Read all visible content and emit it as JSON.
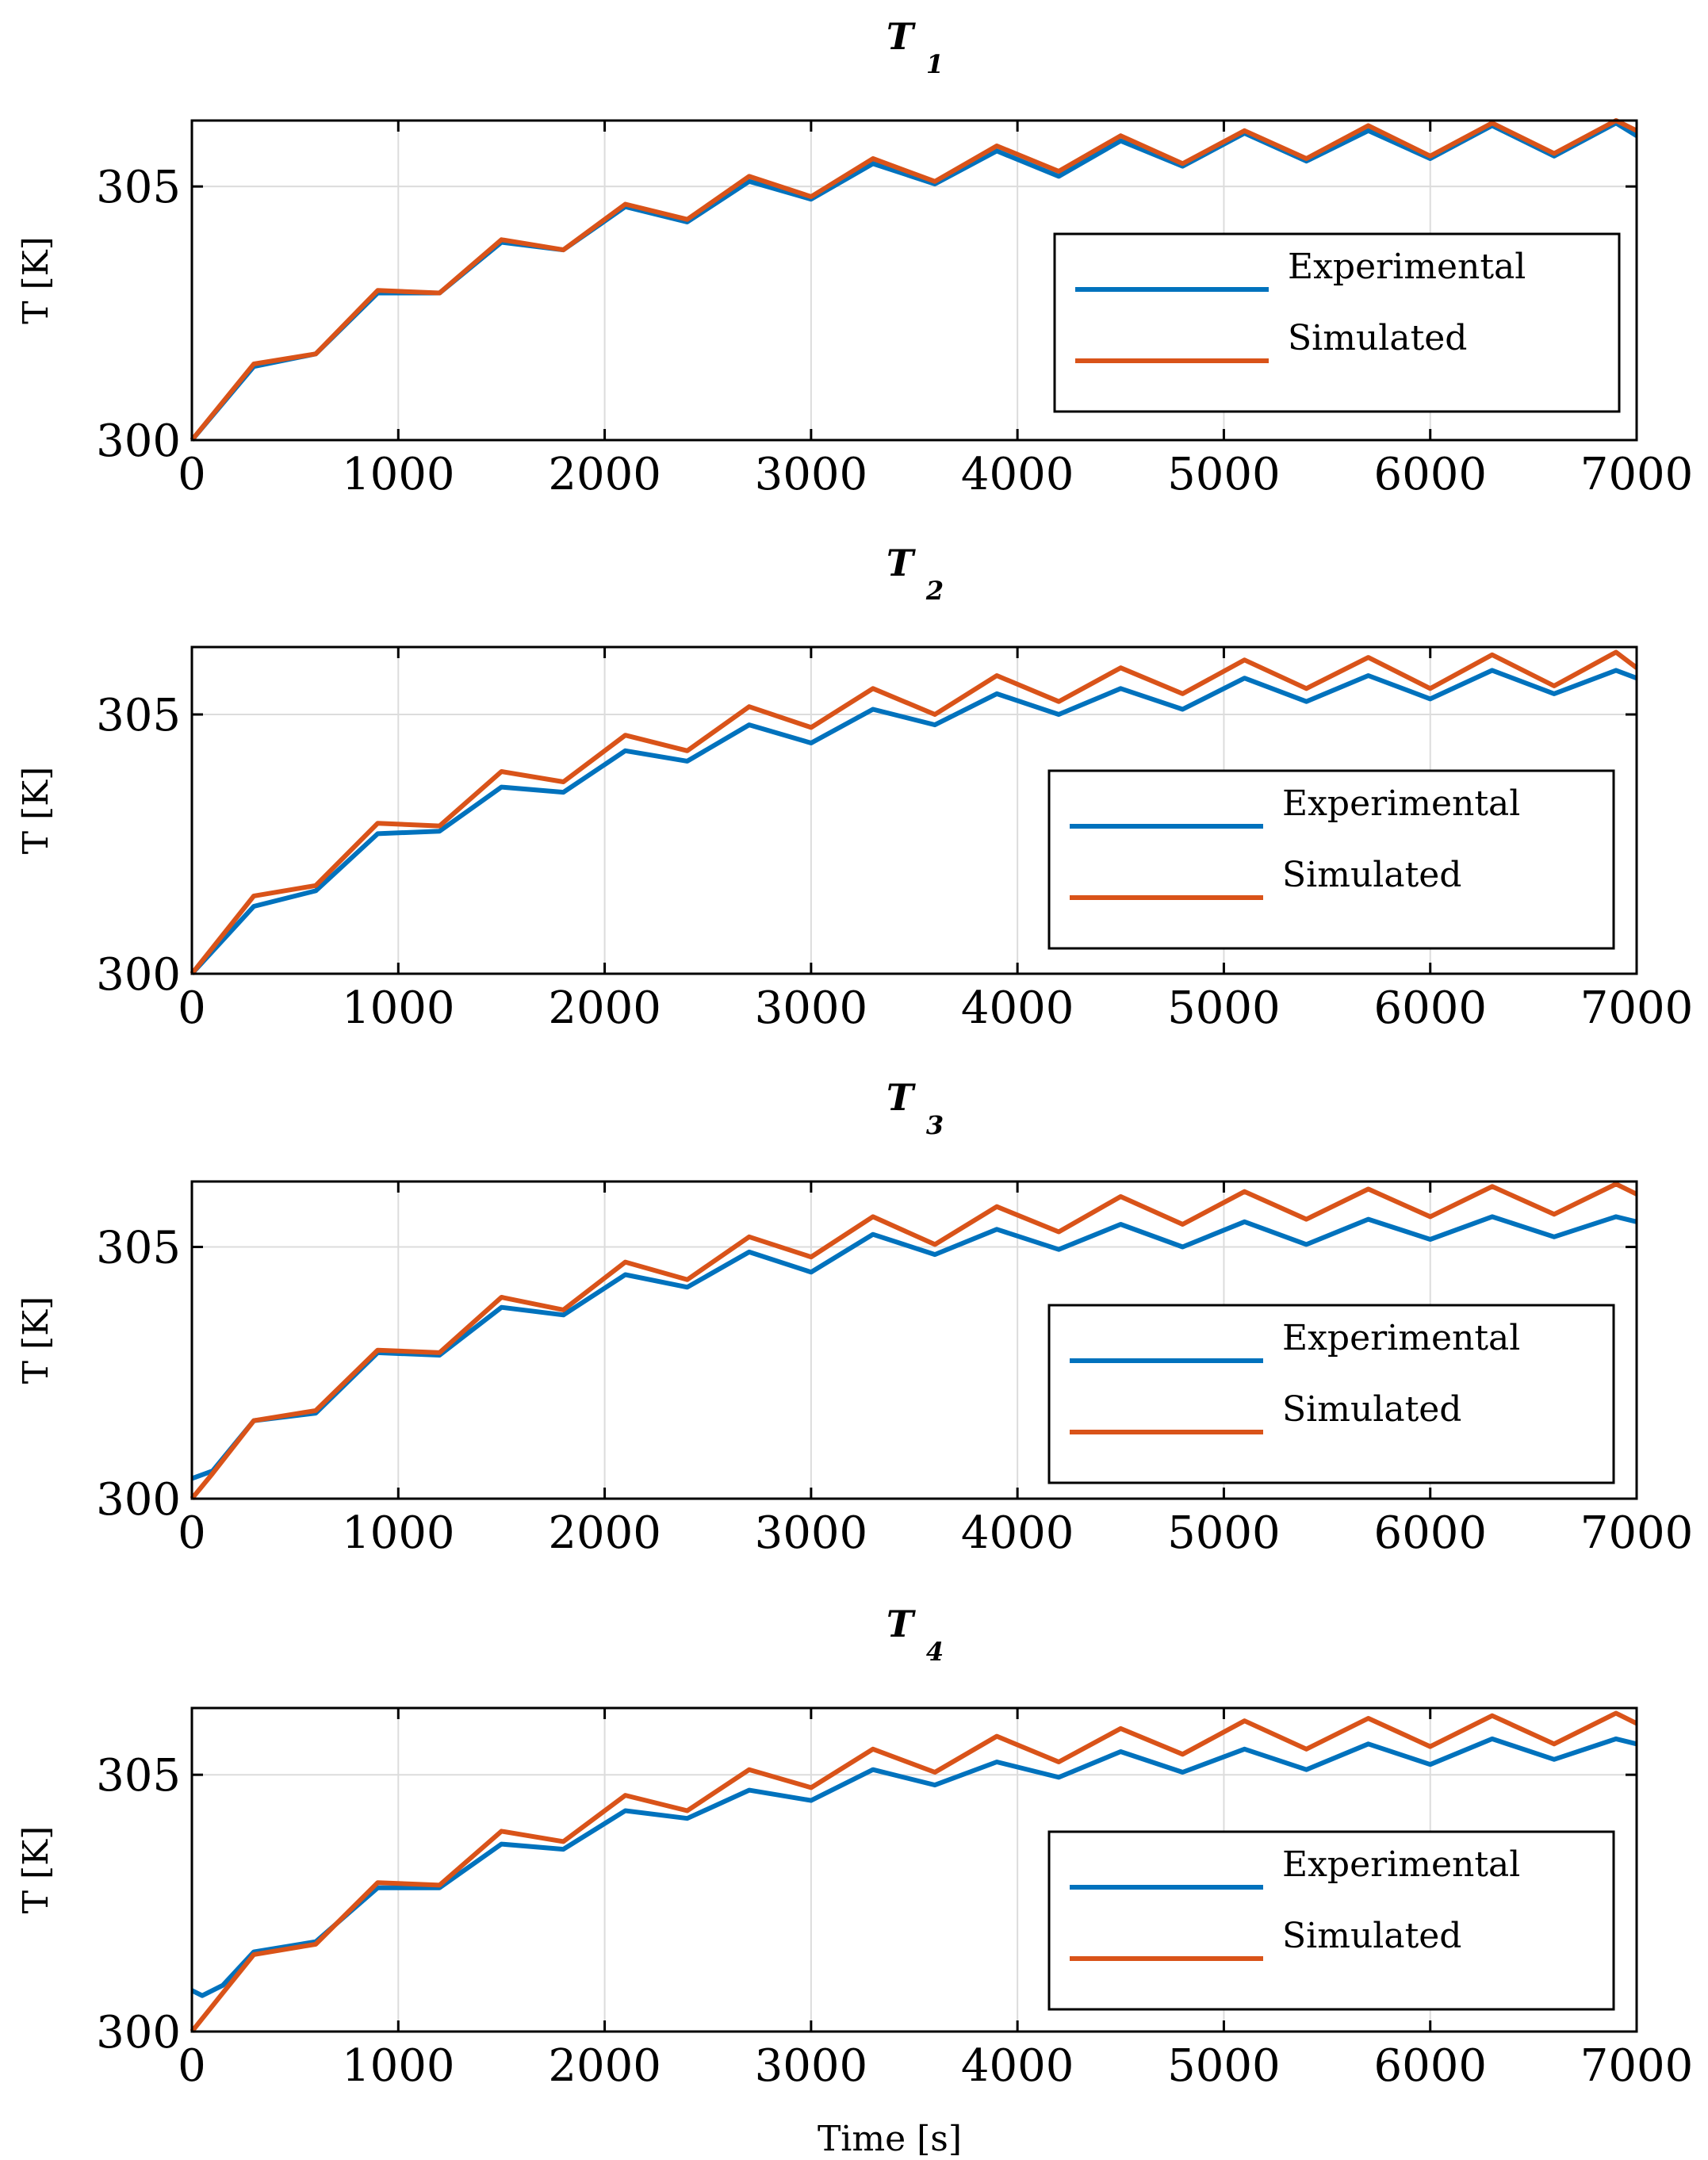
{
  "figure": {
    "x_axis_label": "Time [s]"
  },
  "colors": {
    "experimental": "#0072BD",
    "simulated": "#D95319",
    "grid": "#dcdcdc",
    "axis": "#000000"
  },
  "chart_data": [
    {
      "type": "line",
      "title": "T",
      "title_subscript": "1",
      "xlabel": "",
      "ylabel": "T [K]",
      "xlim": [
        0,
        7000
      ],
      "ylim": [
        300,
        306.3
      ],
      "x_ticks": [
        0,
        1000,
        2000,
        3000,
        4000,
        5000,
        6000,
        7000
      ],
      "y_ticks": [
        300,
        305
      ],
      "grid": true,
      "legend": {
        "position": "lower-right",
        "entries": [
          "Experimental",
          "Simulated"
        ]
      },
      "series": [
        {
          "name": "Experimental",
          "x": [
            0,
            300,
            600,
            900,
            1200,
            1500,
            1800,
            2100,
            2400,
            2700,
            3000,
            3300,
            3600,
            3900,
            4200,
            4500,
            4800,
            5100,
            5400,
            5700,
            6000,
            6300,
            6600,
            6900,
            7000
          ],
          "values": [
            300.0,
            301.45,
            301.7,
            302.9,
            302.9,
            303.9,
            303.75,
            304.6,
            304.3,
            305.1,
            304.75,
            305.45,
            305.05,
            305.7,
            305.2,
            305.9,
            305.4,
            306.05,
            305.5,
            306.1,
            305.55,
            306.2,
            305.6,
            306.25,
            306.0
          ]
        },
        {
          "name": "Simulated",
          "x": [
            0,
            300,
            600,
            900,
            1200,
            1500,
            1800,
            2100,
            2400,
            2700,
            3000,
            3300,
            3600,
            3900,
            4200,
            4500,
            4800,
            5100,
            5400,
            5700,
            6000,
            6300,
            6600,
            6900,
            7000
          ],
          "values": [
            300.0,
            301.5,
            301.7,
            302.95,
            302.9,
            303.95,
            303.75,
            304.65,
            304.35,
            305.2,
            304.8,
            305.55,
            305.1,
            305.8,
            305.3,
            306.0,
            305.45,
            306.1,
            305.55,
            306.2,
            305.6,
            306.25,
            305.65,
            306.3,
            306.1
          ]
        }
      ]
    },
    {
      "type": "line",
      "title": "T",
      "title_subscript": "2",
      "xlabel": "",
      "ylabel": "T [K]",
      "xlim": [
        0,
        7000
      ],
      "ylim": [
        300,
        306.3
      ],
      "x_ticks": [
        0,
        1000,
        2000,
        3000,
        4000,
        5000,
        6000,
        7000
      ],
      "y_ticks": [
        300,
        305
      ],
      "grid": true,
      "legend": {
        "position": "lower-right",
        "entries": [
          "Experimental",
          "Simulated"
        ]
      },
      "series": [
        {
          "name": "Experimental",
          "x": [
            0,
            300,
            600,
            900,
            1200,
            1500,
            1800,
            2100,
            2400,
            2700,
            3000,
            3300,
            3600,
            3900,
            4200,
            4500,
            4800,
            5100,
            5400,
            5700,
            6000,
            6300,
            6600,
            6900,
            7000
          ],
          "values": [
            300.0,
            301.3,
            301.6,
            302.7,
            302.75,
            303.6,
            303.5,
            304.3,
            304.1,
            304.8,
            304.45,
            305.1,
            304.8,
            305.4,
            305.0,
            305.5,
            305.1,
            305.7,
            305.25,
            305.75,
            305.3,
            305.85,
            305.4,
            305.85,
            305.7
          ]
        },
        {
          "name": "Simulated",
          "x": [
            0,
            300,
            600,
            900,
            1200,
            1500,
            1800,
            2100,
            2400,
            2700,
            3000,
            3300,
            3600,
            3900,
            4200,
            4500,
            4800,
            5100,
            5400,
            5700,
            6000,
            6300,
            6600,
            6900,
            7000
          ],
          "values": [
            300.0,
            301.5,
            301.7,
            302.9,
            302.85,
            303.9,
            303.7,
            304.6,
            304.3,
            305.15,
            304.75,
            305.5,
            305.0,
            305.75,
            305.25,
            305.9,
            305.4,
            306.05,
            305.5,
            306.1,
            305.5,
            306.15,
            305.55,
            306.2,
            305.9
          ]
        }
      ]
    },
    {
      "type": "line",
      "title": "T",
      "title_subscript": "3",
      "xlabel": "",
      "ylabel": "T [K]",
      "xlim": [
        0,
        7000
      ],
      "ylim": [
        300,
        306.3
      ],
      "x_ticks": [
        0,
        1000,
        2000,
        3000,
        4000,
        5000,
        6000,
        7000
      ],
      "y_ticks": [
        300,
        305
      ],
      "grid": true,
      "legend": {
        "position": "lower-right",
        "entries": [
          "Experimental",
          "Simulated"
        ]
      },
      "series": [
        {
          "name": "Experimental",
          "x": [
            0,
            100,
            300,
            600,
            900,
            1200,
            1500,
            1800,
            2100,
            2400,
            2700,
            3000,
            3300,
            3600,
            3900,
            4200,
            4500,
            4800,
            5100,
            5400,
            5700,
            6000,
            6300,
            6600,
            6900,
            7000
          ],
          "values": [
            300.4,
            300.55,
            301.55,
            301.7,
            302.9,
            302.85,
            303.8,
            303.65,
            304.45,
            304.2,
            304.9,
            304.5,
            305.25,
            304.85,
            305.35,
            304.95,
            305.45,
            305.0,
            305.5,
            305.05,
            305.55,
            305.15,
            305.6,
            305.2,
            305.6,
            305.5
          ]
        },
        {
          "name": "Simulated",
          "x": [
            0,
            100,
            300,
            600,
            900,
            1200,
            1500,
            1800,
            2100,
            2400,
            2700,
            3000,
            3300,
            3600,
            3900,
            4200,
            4500,
            4800,
            5100,
            5400,
            5700,
            6000,
            6300,
            6600,
            6900,
            7000
          ],
          "values": [
            300.0,
            300.5,
            301.55,
            301.75,
            302.95,
            302.9,
            304.0,
            303.75,
            304.7,
            304.35,
            305.2,
            304.8,
            305.6,
            305.05,
            305.8,
            305.3,
            306.0,
            305.45,
            306.1,
            305.55,
            306.15,
            305.6,
            306.2,
            305.65,
            306.25,
            306.05
          ]
        }
      ]
    },
    {
      "type": "line",
      "title": "T",
      "title_subscript": "4",
      "xlabel": "Time [s]",
      "ylabel": "T [K]",
      "xlim": [
        0,
        7000
      ],
      "ylim": [
        300,
        306.3
      ],
      "x_ticks": [
        0,
        1000,
        2000,
        3000,
        4000,
        5000,
        6000,
        7000
      ],
      "y_ticks": [
        300,
        305
      ],
      "grid": true,
      "legend": {
        "position": "lower-right",
        "entries": [
          "Experimental",
          "Simulated"
        ]
      },
      "series": [
        {
          "name": "Experimental",
          "x": [
            0,
            50,
            150,
            300,
            600,
            900,
            1200,
            1500,
            1800,
            2100,
            2400,
            2700,
            3000,
            3300,
            3600,
            3900,
            4200,
            4500,
            4800,
            5100,
            5400,
            5700,
            6000,
            6300,
            6600,
            6900,
            7000
          ],
          "values": [
            300.8,
            300.7,
            300.9,
            301.55,
            301.75,
            302.8,
            302.8,
            303.65,
            303.55,
            304.3,
            304.15,
            304.7,
            304.5,
            305.1,
            304.8,
            305.25,
            304.95,
            305.45,
            305.05,
            305.5,
            305.1,
            305.6,
            305.2,
            305.7,
            305.3,
            305.7,
            305.6
          ]
        },
        {
          "name": "Simulated",
          "x": [
            0,
            50,
            150,
            300,
            600,
            900,
            1200,
            1500,
            1800,
            2100,
            2400,
            2700,
            3000,
            3300,
            3600,
            3900,
            4200,
            4500,
            4800,
            5100,
            5400,
            5700,
            6000,
            6300,
            6600,
            6900,
            7000
          ],
          "values": [
            300.0,
            300.25,
            300.75,
            301.5,
            301.7,
            302.9,
            302.85,
            303.9,
            303.7,
            304.6,
            304.3,
            305.1,
            304.75,
            305.5,
            305.05,
            305.75,
            305.25,
            305.9,
            305.4,
            306.05,
            305.5,
            306.1,
            305.55,
            306.15,
            305.6,
            306.2,
            306.0
          ]
        }
      ]
    }
  ]
}
